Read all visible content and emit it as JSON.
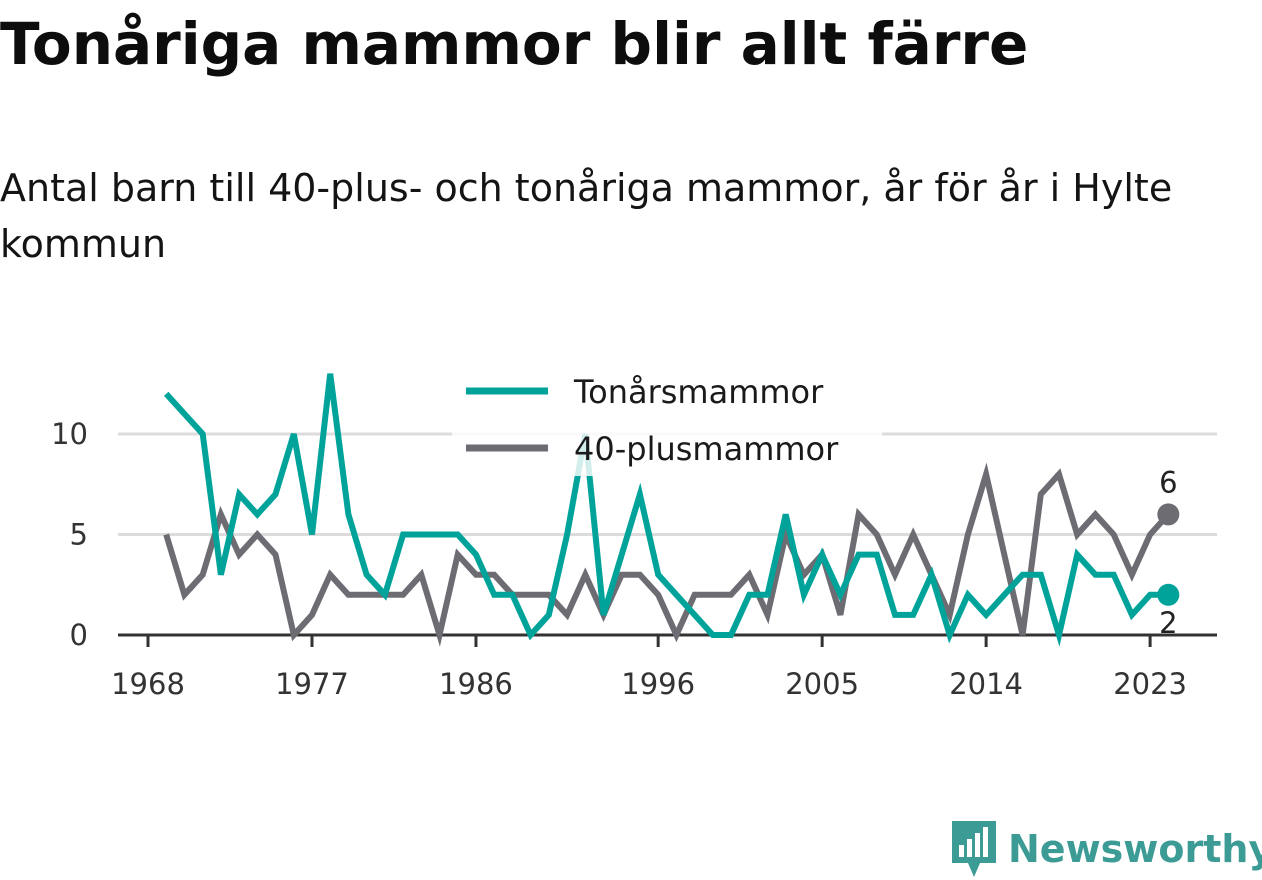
{
  "header": {
    "title": "Tonåriga mammor blir allt färre",
    "subtitle": "Antal barn till 40-plus- och tonåriga mammor, år för år i Hylte kommun"
  },
  "brand": {
    "name": "Newsworthy",
    "icon": "newsworthy-logo-icon",
    "color": "#3d9b96"
  },
  "chart_data": {
    "type": "line",
    "title": "Tonåriga mammor blir allt färre",
    "subtitle": "Antal barn till 40-plus- och tonåriga mammor, år för år i Hylte kommun",
    "xlabel": "",
    "ylabel": "",
    "x": [
      1969,
      1970,
      1971,
      1972,
      1973,
      1974,
      1975,
      1976,
      1977,
      1978,
      1979,
      1980,
      1981,
      1982,
      1983,
      1984,
      1985,
      1986,
      1987,
      1988,
      1989,
      1990,
      1991,
      1992,
      1993,
      1994,
      1995,
      1996,
      1997,
      1998,
      1999,
      2000,
      2001,
      2002,
      2003,
      2004,
      2005,
      2006,
      2007,
      2008,
      2009,
      2010,
      2011,
      2012,
      2013,
      2014,
      2015,
      2016,
      2017,
      2018,
      2019,
      2020,
      2021,
      2022,
      2023,
      2024
    ],
    "xlim": [
      1968,
      2027
    ],
    "ylim": [
      0,
      13
    ],
    "x_ticks": [
      1968,
      1977,
      1986,
      1996,
      2005,
      2014,
      2023
    ],
    "y_ticks": [
      0,
      5,
      10
    ],
    "grid": true,
    "legend_position": "top-center",
    "series": [
      {
        "name": "Tonårsmammor",
        "color": "#00a39a",
        "values": [
          12,
          11,
          10,
          3,
          7,
          6,
          7,
          10,
          5,
          13,
          6,
          3,
          2,
          5,
          5,
          5,
          5,
          4,
          2,
          2,
          0,
          1,
          5,
          10,
          1,
          4,
          7,
          3,
          2,
          1,
          0,
          0,
          2,
          2,
          6,
          2,
          4,
          2,
          4,
          4,
          1,
          1,
          3,
          0,
          2,
          1,
          2,
          3,
          3,
          0,
          4,
          3,
          3,
          1,
          2,
          2
        ],
        "end_label": "2"
      },
      {
        "name": "40-plusmammor",
        "color": "#6d6c72",
        "values": [
          5,
          2,
          3,
          6,
          4,
          5,
          4,
          0,
          1,
          3,
          2,
          2,
          2,
          2,
          3,
          0,
          4,
          3,
          3,
          2,
          2,
          2,
          1,
          3,
          1,
          3,
          3,
          2,
          0,
          2,
          2,
          2,
          3,
          1,
          5,
          3,
          4,
          1,
          6,
          5,
          3,
          5,
          3,
          1,
          5,
          8,
          4,
          0,
          7,
          8,
          5,
          6,
          5,
          3,
          5,
          6
        ],
        "end_label": "6"
      }
    ]
  }
}
